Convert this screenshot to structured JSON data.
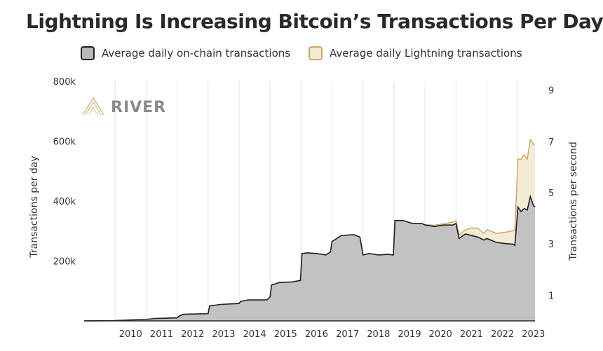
{
  "chart_data": {
    "type": "area",
    "title": "Lightning Is Increasing Bitcoin’s Transactions Per Day",
    "logo_text": "RIVER",
    "y_left": {
      "label": "Transactions per day",
      "ticks": [
        "200k",
        "400k",
        "600k",
        "800k"
      ],
      "tick_values": [
        200000,
        400000,
        600000,
        800000
      ],
      "lim": [
        0,
        800000
      ]
    },
    "y_right": {
      "label": "Transactions per second",
      "ticks": [
        "1",
        "3",
        "5",
        "7",
        "9"
      ],
      "tick_values": [
        1,
        3,
        5,
        7,
        9
      ]
    },
    "x_ticks": [
      "2010",
      "2011",
      "2012",
      "2013",
      "2014",
      "2015",
      "2016",
      "2017",
      "2018",
      "2019",
      "2020",
      "2021",
      "2022",
      "2023"
    ],
    "xlim": [
      2009.0,
      2023.55
    ],
    "grid": "vertical",
    "series": [
      {
        "name": "Average daily on-chain transactions",
        "color": "#c2c2c2",
        "stroke": "#1e1e1e",
        "x": [
          2009.0,
          2010.0,
          2011.0,
          2011.3,
          2012.0,
          2012.05,
          2012.2,
          2012.5,
          2013.0,
          2013.05,
          2013.4,
          2014.0,
          2014.05,
          2014.3,
          2014.9,
          2015.0,
          2015.05,
          2015.3,
          2015.7,
          2015.98,
          2016.03,
          2016.2,
          2016.5,
          2016.8,
          2016.95,
          2017.0,
          2017.3,
          2017.7,
          2017.9,
          2018.0,
          2018.2,
          2018.5,
          2018.8,
          2018.98,
          2019.03,
          2019.3,
          2019.6,
          2019.9,
          2020.0,
          2020.3,
          2020.6,
          2020.9,
          2021.0,
          2021.1,
          2021.3,
          2021.5,
          2021.7,
          2021.9,
          2022.0,
          2022.3,
          2022.6,
          2022.85,
          2022.9,
          2023.0,
          2023.1,
          2023.2,
          2023.3,
          2023.4,
          2023.5,
          2023.55
        ],
        "values": [
          0,
          1000,
          5000,
          8000,
          10000,
          15000,
          22000,
          23000,
          24000,
          50000,
          55000,
          58000,
          65000,
          70000,
          70000,
          80000,
          120000,
          128000,
          130000,
          135000,
          225000,
          227000,
          225000,
          220000,
          230000,
          265000,
          285000,
          288000,
          280000,
          220000,
          225000,
          220000,
          222000,
          220000,
          335000,
          335000,
          325000,
          325000,
          320000,
          315000,
          320000,
          320000,
          325000,
          275000,
          290000,
          285000,
          280000,
          270000,
          275000,
          262000,
          258000,
          256000,
          252000,
          380000,
          365000,
          375000,
          370000,
          415000,
          385000,
          380000
        ]
      },
      {
        "name": "Average daily Lightning transactions",
        "color": "#f4ebd4",
        "stroke": "#c9a86a",
        "x": [
          2020.0,
          2020.3,
          2020.6,
          2020.9,
          2021.0,
          2021.1,
          2021.3,
          2021.5,
          2021.7,
          2021.9,
          2022.0,
          2022.3,
          2022.6,
          2022.85,
          2022.9,
          2023.0,
          2023.1,
          2023.2,
          2023.3,
          2023.4,
          2023.5,
          2023.55
        ],
        "values": [
          1500,
          4000,
          4000,
          10000,
          10000,
          12000,
          13000,
          25000,
          30000,
          22000,
          30000,
          30000,
          38000,
          45000,
          50000,
          160000,
          175000,
          180000,
          170000,
          190000,
          205000,
          210000
        ]
      }
    ]
  }
}
